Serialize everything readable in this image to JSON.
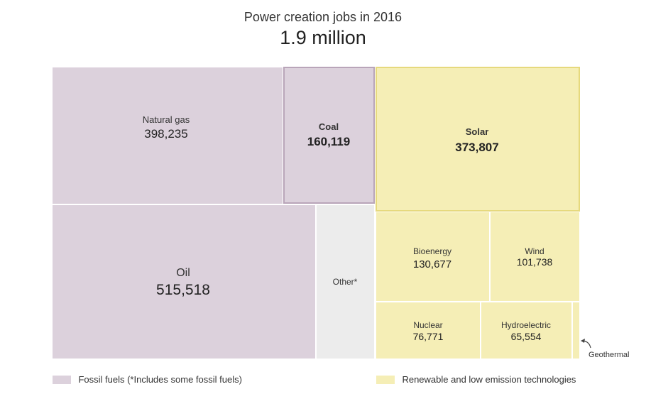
{
  "title": "Power creation jobs in 2016",
  "subtitle": "1.9 million",
  "colors": {
    "fossil": "#dcd1dc",
    "fossil_border": "#b9a5b9",
    "renewable": "#f5eeb6",
    "renewable_border": "#e6d97d",
    "other": "#ececec"
  },
  "legend": {
    "fossil_label": "Fossil fuels (*Includes some fossil fuels)",
    "renewable_label": "Renewable and low emission technologies"
  },
  "chart_data": {
    "type": "treemap",
    "title": "Power creation jobs in 2016",
    "subtitle": "1.9 million",
    "items": [
      {
        "name": "Natural gas",
        "value": 398235,
        "value_label": "398,235",
        "group": "fossil"
      },
      {
        "name": "Coal",
        "value": 160119,
        "value_label": "160,119",
        "group": "fossil"
      },
      {
        "name": "Oil",
        "value": 515518,
        "value_label": "515,518",
        "group": "fossil"
      },
      {
        "name": "Other*",
        "value": null,
        "value_label": "",
        "group": "other"
      },
      {
        "name": "Solar",
        "value": 373807,
        "value_label": "373,807",
        "group": "renewable"
      },
      {
        "name": "Bioenergy",
        "value": 130677,
        "value_label": "130,677",
        "group": "renewable"
      },
      {
        "name": "Wind",
        "value": 101738,
        "value_label": "101,738",
        "group": "renewable"
      },
      {
        "name": "Nuclear",
        "value": 76771,
        "value_label": "76,771",
        "group": "renewable"
      },
      {
        "name": "Hydroelectric",
        "value": 65554,
        "value_label": "65,554",
        "group": "renewable"
      },
      {
        "name": "Geothermal",
        "value": null,
        "value_label": "",
        "group": "renewable"
      }
    ]
  }
}
